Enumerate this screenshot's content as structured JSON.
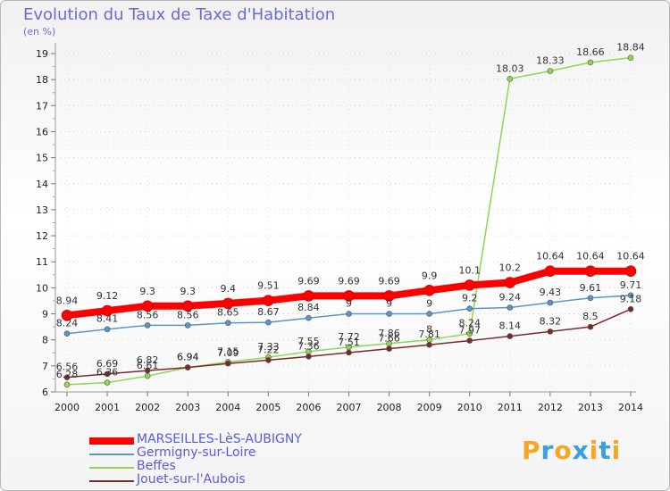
{
  "header": {
    "title": "Evolution du Taux de Taxe d'Habitation",
    "unit": "(en %)"
  },
  "logo": {
    "text": "Proxiti",
    "colors": [
      "#f5a623",
      "#3aa0e0",
      "#f5a623",
      "#3aa0e0",
      "#f5a623",
      "#3aa0e0",
      "#f5a623"
    ]
  },
  "chart_data": {
    "type": "line",
    "categories": [
      "2000",
      "2001",
      "2002",
      "2003",
      "2004",
      "2005",
      "2006",
      "2007",
      "2008",
      "2009",
      "2010",
      "2011",
      "2012",
      "2013",
      "2014"
    ],
    "ylim": [
      6,
      19
    ],
    "yticks": [
      6,
      7,
      8,
      9,
      10,
      11,
      12,
      13,
      14,
      15,
      16,
      17,
      18,
      19
    ],
    "legend": "bottom-left",
    "series": [
      {
        "name": "MARSEILLES-LèS-AUBIGNY",
        "color": "#ff0000",
        "width": 8,
        "values": [
          8.94,
          9.12,
          9.3,
          9.3,
          9.4,
          9.51,
          9.69,
          9.69,
          9.69,
          9.9,
          10.1,
          10.2,
          10.64,
          10.64,
          10.64
        ],
        "labels": [
          "8.94",
          "9.12",
          "9.3",
          "9.3",
          "9.4",
          "9.51",
          "9.69",
          "9.69",
          "9.69",
          "9.9",
          "10.1",
          "10.2",
          "10.64",
          "10.64",
          "10.64"
        ]
      },
      {
        "name": "Germigny-sur-Loire",
        "color": "#5a96c8",
        "width": 1.5,
        "values": [
          8.24,
          8.41,
          8.56,
          8.56,
          8.65,
          8.67,
          8.84,
          9,
          9,
          9,
          9.2,
          9.24,
          9.43,
          9.61,
          9.71
        ],
        "labels": [
          "8.24",
          "8.41",
          "8.56",
          "8.56",
          "8.65",
          "8.67",
          "8.84",
          "9",
          "9",
          "9",
          "9.2",
          "9.24",
          "9.43",
          "9.61",
          "9.71"
        ]
      },
      {
        "name": "Beffes",
        "color": "#8fd651",
        "width": 1.5,
        "values": [
          6.28,
          6.36,
          6.61,
          6.94,
          7.15,
          7.33,
          7.55,
          7.72,
          7.86,
          8,
          8.24,
          18.03,
          18.33,
          18.66,
          18.84
        ],
        "labels": [
          "6.28",
          "6.36",
          "6.61",
          "6.94",
          "7.15",
          "7.33",
          "7.55",
          "7.72",
          "7.86",
          "8",
          "8.24",
          "18.03",
          "18.33",
          "18.66",
          "18.84"
        ]
      },
      {
        "name": "Jouet-sur-l'Aubois",
        "color": "#7a2a2a",
        "width": 1.5,
        "values": [
          6.56,
          6.69,
          6.82,
          6.94,
          7.09,
          7.22,
          7.36,
          7.51,
          7.66,
          7.81,
          7.97,
          8.14,
          8.32,
          8.5,
          9.18
        ],
        "labels": [
          "6.56",
          "6.69",
          "6.82",
          "6.94",
          "7.09",
          "7.22",
          "7.36",
          "7.51",
          "7.66",
          "7.81",
          "7.97",
          "8.14",
          "8.32",
          "8.5",
          "9.18"
        ]
      }
    ]
  }
}
